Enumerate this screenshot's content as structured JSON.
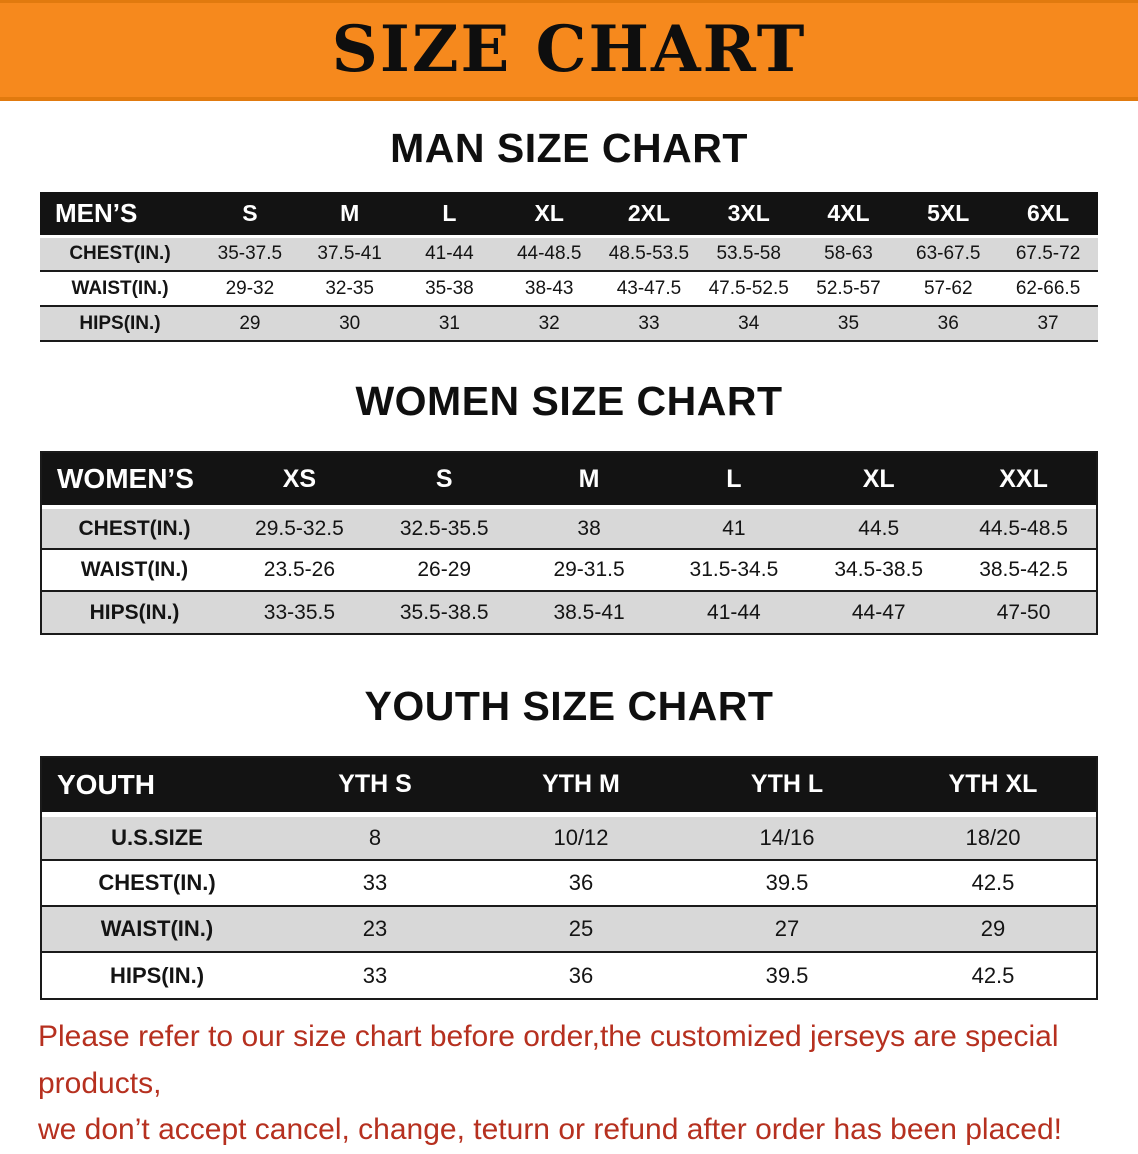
{
  "banner": {
    "title": "SIZE CHART"
  },
  "colors": {
    "banner_bg": "#f6891d",
    "header_black": "#131313",
    "row_gray": "#d8d8d8",
    "disclaimer_red": "#b6301f"
  },
  "men": {
    "heading": "MAN SIZE CHART",
    "label": "MEN’S",
    "sizes": [
      "S",
      "M",
      "L",
      "XL",
      "2XL",
      "3XL",
      "4XL",
      "5XL",
      "6XL"
    ],
    "rows": [
      {
        "label": "CHEST(IN.)",
        "values": [
          "35-37.5",
          "37.5-41",
          "41-44",
          "44-48.5",
          "48.5-53.5",
          "53.5-58",
          "58-63",
          "63-67.5",
          "67.5-72"
        ]
      },
      {
        "label": "WAIST(IN.)",
        "values": [
          "29-32",
          "32-35",
          "35-38",
          "38-43",
          "43-47.5",
          "47.5-52.5",
          "52.5-57",
          "57-62",
          "62-66.5"
        ]
      },
      {
        "label": "HIPS(IN.)",
        "values": [
          "29",
          "30",
          "31",
          "32",
          "33",
          "34",
          "35",
          "36",
          "37"
        ]
      }
    ]
  },
  "women": {
    "heading": "WOMEN SIZE CHART",
    "label": "WOMEN’S",
    "sizes": [
      "XS",
      "S",
      "M",
      "L",
      "XL",
      "XXL"
    ],
    "rows": [
      {
        "label": "CHEST(IN.)",
        "values": [
          "29.5-32.5",
          "32.5-35.5",
          "38",
          "41",
          "44.5",
          "44.5-48.5"
        ]
      },
      {
        "label": "WAIST(IN.)",
        "values": [
          "23.5-26",
          "26-29",
          "29-31.5",
          "31.5-34.5",
          "34.5-38.5",
          "38.5-42.5"
        ]
      },
      {
        "label": "HIPS(IN.)",
        "values": [
          "33-35.5",
          "35.5-38.5",
          "38.5-41",
          "41-44",
          "44-47",
          "47-50"
        ]
      }
    ]
  },
  "youth": {
    "heading": "YOUTH SIZE CHART",
    "label": "YOUTH",
    "sizes": [
      "YTH S",
      "YTH M",
      "YTH L",
      "YTH XL"
    ],
    "rows": [
      {
        "label": "U.S.SIZE",
        "values": [
          "8",
          "10/12",
          "14/16",
          "18/20"
        ]
      },
      {
        "label": "CHEST(IN.)",
        "values": [
          "33",
          "36",
          "39.5",
          "42.5"
        ]
      },
      {
        "label": "WAIST(IN.)",
        "values": [
          "23",
          "25",
          "27",
          "29"
        ]
      },
      {
        "label": "HIPS(IN.)",
        "values": [
          "33",
          "36",
          "39.5",
          "42.5"
        ]
      }
    ]
  },
  "disclaimer": {
    "line1": "Please refer to our size chart before order,the customized jerseys are special products,",
    "line2": "we don’t accept cancel, change, teturn or refund after order has been placed!"
  }
}
